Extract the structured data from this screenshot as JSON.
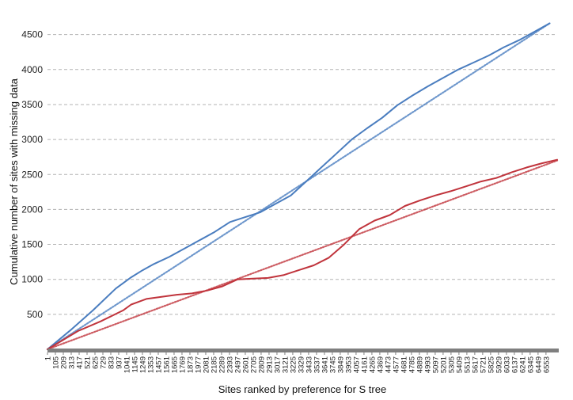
{
  "chart_data": {
    "type": "line",
    "title": "",
    "xlabel": "Sites ranked by preference for S tree",
    "ylabel": "Cumulative number of sites with missing data",
    "xlim": [
      1,
      6700
    ],
    "ylim": [
      0,
      4700
    ],
    "yticks": [
      500,
      1000,
      1500,
      2000,
      2500,
      3000,
      3500,
      4000,
      4500
    ],
    "xtick_start": 1,
    "xtick_step": 104,
    "xtick_end": 6553,
    "grid": "horizontal-dashed",
    "legend": "none",
    "colors": {
      "blue": "#4a7dbf",
      "red": "#c0343c",
      "grid": "#b3b3b3",
      "axis": "#7f7f7f"
    },
    "series": [
      {
        "color": "#4a7dbf",
        "style": "solid",
        "x": [
          1,
          300,
          600,
          900,
          1100,
          1250,
          1400,
          1600,
          1800,
          2000,
          2200,
          2400,
          2600,
          2800,
          3000,
          3200,
          3400,
          3600,
          3800,
          4000,
          4200,
          4400,
          4600,
          4800,
          5000,
          5200,
          5400,
          5600,
          5800,
          6000,
          6200,
          6400,
          6600
        ],
        "y": [
          0,
          270,
          560,
          870,
          1030,
          1130,
          1220,
          1320,
          1440,
          1560,
          1680,
          1820,
          1890,
          1960,
          2080,
          2200,
          2400,
          2600,
          2800,
          3000,
          3160,
          3310,
          3490,
          3630,
          3760,
          3880,
          4000,
          4100,
          4200,
          4320,
          4420,
          4540,
          4660
        ]
      },
      {
        "color": "#4a7dbf",
        "style": "dotted",
        "x": [
          1,
          6600
        ],
        "y": [
          0,
          4660
        ]
      },
      {
        "color": "#c0343c",
        "style": "solid",
        "x": [
          1,
          400,
          700,
          1000,
          1100,
          1300,
          1500,
          1700,
          1900,
          2100,
          2300,
          2500,
          2700,
          2900,
          3100,
          3300,
          3500,
          3700,
          3900,
          4100,
          4300,
          4500,
          4700,
          4900,
          5100,
          5300,
          5500,
          5700,
          5900,
          6100,
          6300,
          6500,
          6700
        ],
        "y": [
          0,
          260,
          400,
          560,
          640,
          720,
          750,
          780,
          800,
          840,
          900,
          1000,
          1010,
          1020,
          1060,
          1130,
          1200,
          1310,
          1500,
          1720,
          1840,
          1920,
          2050,
          2130,
          2200,
          2260,
          2330,
          2400,
          2450,
          2530,
          2600,
          2660,
          2710
        ]
      },
      {
        "color": "#c0343c",
        "style": "dotted",
        "x": [
          1,
          6700
        ],
        "y": [
          0,
          2700
        ]
      }
    ]
  }
}
